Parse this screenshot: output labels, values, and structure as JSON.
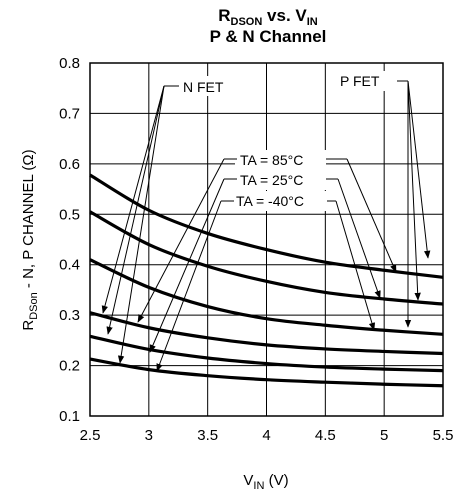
{
  "chart_data": {
    "type": "line",
    "title": {
      "line1_main": "R",
      "line1_sub": "DSON",
      "line1_mid": " vs. V",
      "line1_sub2": "IN",
      "line2": "P & N Channel"
    },
    "xlabel": {
      "main": "V",
      "sub": "IN",
      "rest": " (V)"
    },
    "ylabel": {
      "main": "R",
      "sub": "DSon",
      "rest": " - N, P CHANNEL (Ω)"
    },
    "xlim": [
      2.5,
      5.5
    ],
    "ylim": [
      0.1,
      0.8
    ],
    "xticks": [
      "2.5",
      "3",
      "3.5",
      "4",
      "4.5",
      "5",
      "5.5"
    ],
    "yticks": [
      "0.1",
      "0.2",
      "0.3",
      "0.4",
      "0.5",
      "0.6",
      "0.7",
      "0.8"
    ],
    "grid": true,
    "series": [
      {
        "x": [
          2.5,
          3.0,
          3.5,
          4.0,
          4.5,
          5.0,
          5.5
        ],
        "values": [
          0.578,
          0.508,
          0.462,
          0.43,
          0.405,
          0.389,
          0.375
        ]
      },
      {
        "x": [
          2.5,
          3.0,
          3.5,
          4.0,
          4.5,
          5.0,
          5.5
        ],
        "values": [
          0.505,
          0.44,
          0.397,
          0.367,
          0.345,
          0.332,
          0.322
        ]
      },
      {
        "x": [
          2.5,
          3.0,
          3.5,
          4.0,
          4.5,
          5.0,
          5.5
        ],
        "values": [
          0.41,
          0.355,
          0.317,
          0.293,
          0.28,
          0.27,
          0.262
        ]
      },
      {
        "x": [
          2.5,
          3.0,
          3.5,
          4.0,
          4.5,
          5.0,
          5.5
        ],
        "values": [
          0.305,
          0.275,
          0.255,
          0.241,
          0.233,
          0.228,
          0.224
        ]
      },
      {
        "x": [
          2.5,
          3.0,
          3.5,
          4.0,
          4.5,
          5.0,
          5.5
        ],
        "values": [
          0.258,
          0.232,
          0.215,
          0.204,
          0.197,
          0.193,
          0.19
        ]
      },
      {
        "x": [
          2.5,
          3.0,
          3.5,
          4.0,
          4.5,
          5.0,
          5.5
        ],
        "values": [
          0.213,
          0.192,
          0.18,
          0.172,
          0.167,
          0.163,
          0.16
        ]
      }
    ],
    "annotations": {
      "n_fet": "N FET",
      "p_fet": "P FET",
      "ta_85": "TA = 85°C",
      "ta_25": "TA = 25°C",
      "ta_m40": "TA = -40°C"
    }
  }
}
